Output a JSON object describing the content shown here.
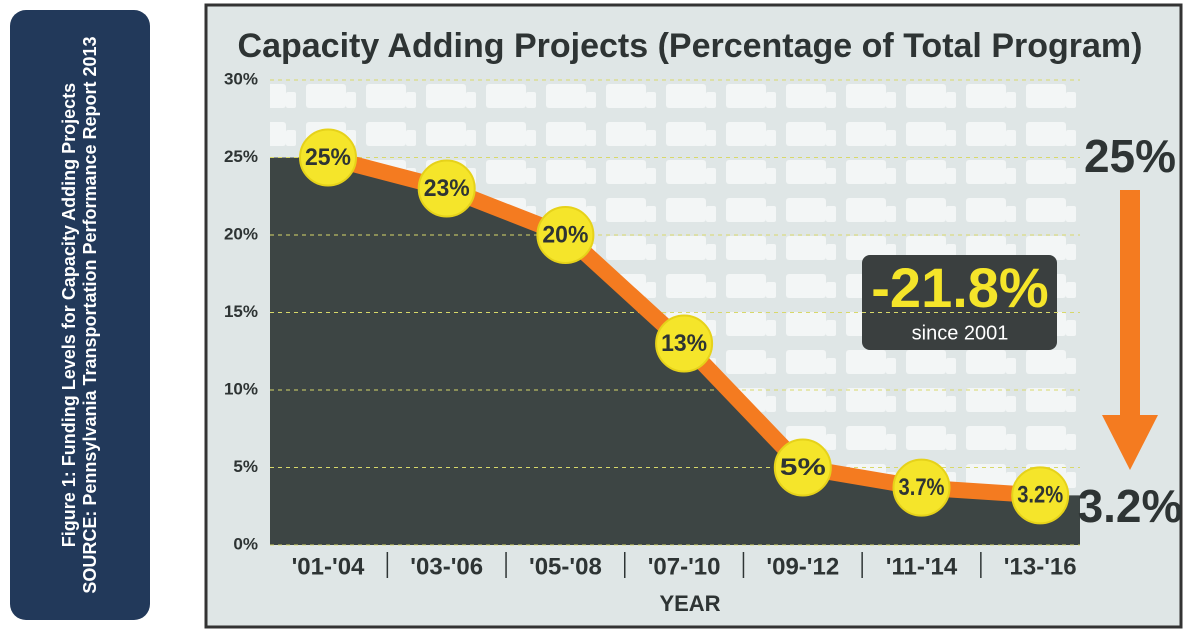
{
  "sidebar": {
    "caption": "Figure 1: Funding Levels for Capacity Adding Projects",
    "source": "SOURCE: Pennsylvania Transportation Performance Report 2013"
  },
  "chart_data": {
    "type": "line",
    "title": "Capacity Adding Projects (Percentage of Total Program)",
    "xlabel": "YEAR",
    "categories": [
      "'01-'04",
      "'03-'06",
      "'05-'08",
      "'07-'10",
      "'09-'12",
      "'11-'14",
      "'13-'16"
    ],
    "series": [
      {
        "name": "Capacity Adding Projects",
        "color": "#f47b20",
        "values": [
          25,
          23,
          20,
          13,
          5,
          3.7,
          3.2
        ],
        "value_labels": [
          "25%",
          "23%",
          "20%",
          "13%",
          "5%",
          "3.7%",
          "3.2%"
        ]
      }
    ],
    "ylim": [
      0,
      30
    ],
    "yticks": [
      {
        "value": 0,
        "label": "0%"
      },
      {
        "value": 5,
        "label": "5%"
      },
      {
        "value": 10,
        "label": "10%"
      },
      {
        "value": 15,
        "label": "15%"
      },
      {
        "value": 20,
        "label": "20%"
      },
      {
        "value": 25,
        "label": "25%"
      },
      {
        "value": 30,
        "label": "30%"
      }
    ],
    "annotations": {
      "change": "-21.8%",
      "change_note": "since 2001",
      "start": "25%",
      "end": "3.2%"
    }
  }
}
